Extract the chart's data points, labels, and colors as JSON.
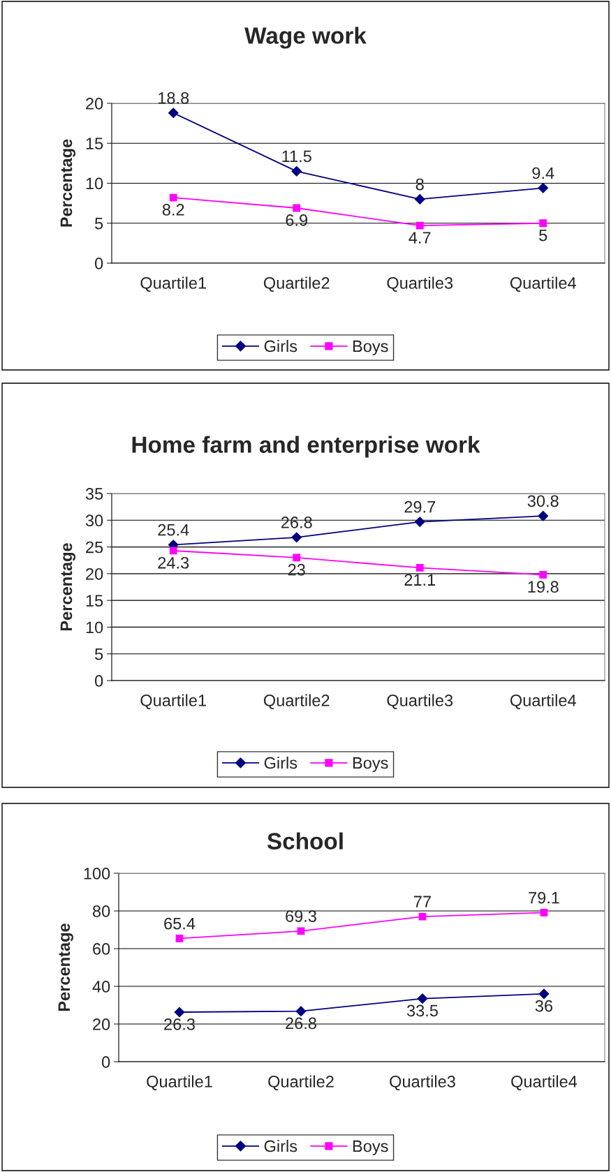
{
  "chart_data": [
    {
      "type": "line",
      "title": "Wage work",
      "ylabel": "Percentage",
      "categories": [
        "Quartile1",
        "Quartile2",
        "Quartile3",
        "Quartile4"
      ],
      "ylim": [
        0,
        20
      ],
      "yticks": [
        0,
        5,
        10,
        15,
        20
      ],
      "grid": "y",
      "legend": "bottom",
      "data_labels": true,
      "series": [
        {
          "name": "Girls",
          "color": "#000080",
          "marker": "diamond",
          "values": [
            18.8,
            11.5,
            8,
            9.4
          ]
        },
        {
          "name": "Boys",
          "color": "#ff00ff",
          "marker": "square",
          "values": [
            8.2,
            6.9,
            4.7,
            5
          ]
        }
      ]
    },
    {
      "type": "line",
      "title": "Home farm and enterprise work",
      "ylabel": "Percentage",
      "categories": [
        "Quartile1",
        "Quartile2",
        "Quartile3",
        "Quartile4"
      ],
      "ylim": [
        0,
        35
      ],
      "yticks": [
        0,
        5,
        10,
        15,
        20,
        25,
        30,
        35
      ],
      "grid": "y",
      "legend": "bottom",
      "data_labels": true,
      "series": [
        {
          "name": "Girls",
          "color": "#000080",
          "marker": "diamond",
          "values": [
            25.4,
            26.8,
            29.7,
            30.8
          ]
        },
        {
          "name": "Boys",
          "color": "#ff00ff",
          "marker": "square",
          "values": [
            24.3,
            23,
            21.1,
            19.8
          ]
        }
      ]
    },
    {
      "type": "line",
      "title": "School",
      "ylabel": "Percentage",
      "categories": [
        "Quartile1",
        "Quartile2",
        "Quartile3",
        "Quartile4"
      ],
      "ylim": [
        0,
        100
      ],
      "yticks": [
        0,
        20,
        40,
        60,
        80,
        100
      ],
      "grid": "y",
      "legend": "bottom",
      "data_labels": true,
      "series": [
        {
          "name": "Girls",
          "color": "#000080",
          "marker": "diamond",
          "values": [
            26.3,
            26.8,
            33.5,
            36
          ]
        },
        {
          "name": "Boys",
          "color": "#ff00ff",
          "marker": "square",
          "values": [
            65.4,
            69.3,
            77,
            79.1
          ]
        }
      ]
    }
  ]
}
